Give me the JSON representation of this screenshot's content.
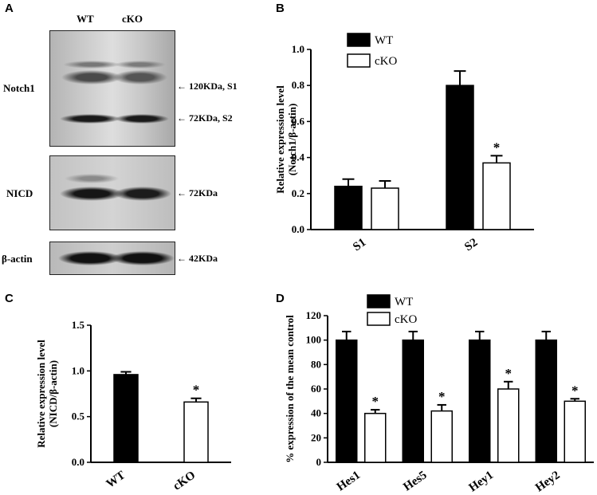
{
  "panels": {
    "A": "A",
    "B": "B",
    "C": "C",
    "D": "D"
  },
  "blot": {
    "lanes": [
      "WT",
      "cKO"
    ],
    "rows": [
      {
        "name": "Notch1",
        "annotations": [
          "120KDa, S1",
          "72KDa, S2"
        ]
      },
      {
        "name": "NICD",
        "annotations": [
          "72KDa"
        ]
      },
      {
        "name": "β-actin",
        "annotations": [
          "42KDa"
        ]
      }
    ]
  },
  "chart_data": [
    {
      "panel": "B",
      "type": "bar",
      "categories": [
        "S1",
        "S2"
      ],
      "series": [
        {
          "name": "WT",
          "values": [
            0.24,
            0.8
          ],
          "errors": [
            0.04,
            0.08
          ],
          "fill": "#000000"
        },
        {
          "name": "cKO",
          "values": [
            0.23,
            0.37
          ],
          "errors": [
            0.04,
            0.04
          ],
          "fill": "#ffffff"
        }
      ],
      "significance": [
        {
          "category": "S2",
          "series": "cKO",
          "mark": "*"
        }
      ],
      "ylabel": "Relative expression level",
      "ylabel2": "(Notch1/β-actin)",
      "ylim": [
        0,
        1.0
      ],
      "yticks": [
        "0.0",
        "0.2",
        "0.4",
        "0.6",
        "0.8",
        "1.0"
      ],
      "legend": "top-left"
    },
    {
      "panel": "C",
      "type": "bar",
      "categories": [
        "WT",
        "cKO"
      ],
      "values": [
        0.96,
        0.66
      ],
      "errors": [
        0.03,
        0.04
      ],
      "fills": [
        "#000000",
        "#ffffff"
      ],
      "significance": [
        {
          "category": "cKO",
          "mark": "*"
        }
      ],
      "ylabel": "Relative expression level",
      "ylabel2": "(NICD/β-actin)",
      "ylim": [
        0,
        1.5
      ],
      "yticks": [
        "0.0",
        "0.5",
        "1.0",
        "1.5"
      ]
    },
    {
      "panel": "D",
      "type": "bar",
      "categories": [
        "Hes1",
        "Hes5",
        "Hey1",
        "Hey2"
      ],
      "series": [
        {
          "name": "WT",
          "values": [
            100,
            100,
            100,
            100
          ],
          "errors": [
            7,
            7,
            7,
            7
          ],
          "fill": "#000000"
        },
        {
          "name": "cKO",
          "values": [
            40,
            42,
            60,
            50
          ],
          "errors": [
            3,
            5,
            6,
            2
          ],
          "fill": "#ffffff"
        }
      ],
      "significance": [
        {
          "category": "Hes1",
          "series": "cKO",
          "mark": "*"
        },
        {
          "category": "Hes5",
          "series": "cKO",
          "mark": "*"
        },
        {
          "category": "Hey1",
          "series": "cKO",
          "mark": "*"
        },
        {
          "category": "Hey2",
          "series": "cKO",
          "mark": "*"
        }
      ],
      "ylabel": "% expression of  the mean control",
      "ylim": [
        0,
        120
      ],
      "yticks": [
        "0",
        "20",
        "40",
        "60",
        "80",
        "100",
        "120"
      ],
      "legend": "top-left"
    }
  ]
}
